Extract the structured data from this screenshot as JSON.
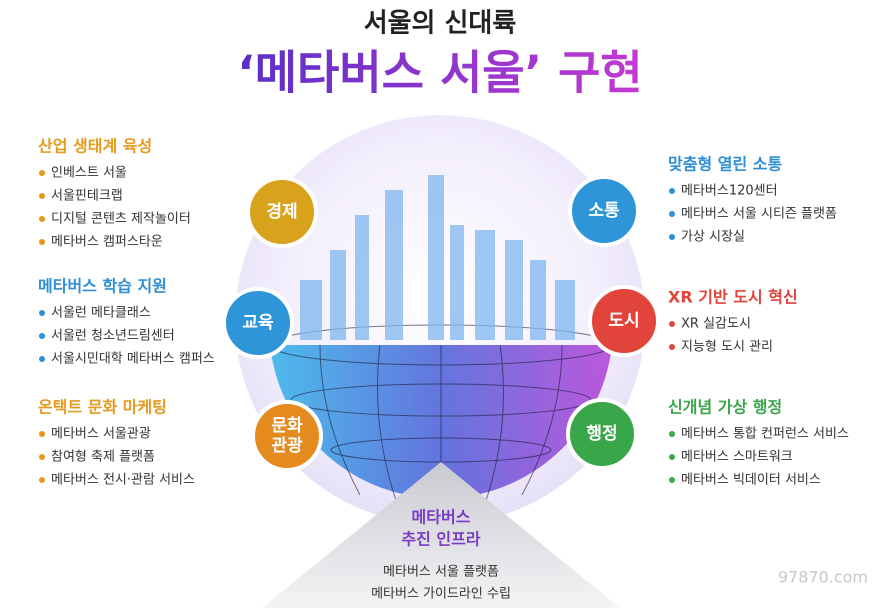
{
  "header": {
    "subtitle": "서울의 신대륙",
    "title": "‘메타버스 서울’ 구현"
  },
  "left_sections": [
    {
      "heading": "산업 생태계 육성",
      "items": [
        "인베스트 서울",
        "서울핀테크랩",
        "디지털 콘텐츠 제작놀이터",
        "메타버스 캠퍼스타운"
      ]
    },
    {
      "heading": "메타버스 학습 지원",
      "items": [
        "서울런 메타클래스",
        "서울런 청소년드림센터",
        "서울시민대학 메타버스 캠퍼스"
      ]
    },
    {
      "heading": "온택트 문화 마케팅",
      "items": [
        "메타버스 서울관광",
        "참여형 축제 플랫폼",
        "메타버스 전시·관람 서비스"
      ]
    }
  ],
  "right_sections": [
    {
      "heading": "맞춤형 열린 소통",
      "items": [
        "메타버스120센터",
        "메타버스 서울 시티즌 플랫폼",
        "가상 시장실"
      ]
    },
    {
      "heading": "XR 기반 도시 혁신",
      "items": [
        "XR 실감도시",
        "지능형 도시 관리"
      ]
    },
    {
      "heading": "신개념 가상 행정",
      "items": [
        "메타버스 통합 컨퍼런스 서비스",
        "메타버스 스마트워크",
        "메타버스 빅데이터 서비스"
      ]
    }
  ],
  "left_circles": [
    {
      "lines": [
        "경제"
      ]
    },
    {
      "lines": [
        "교육"
      ]
    },
    {
      "lines": [
        "문화",
        "관광"
      ]
    }
  ],
  "right_circles": [
    {
      "lines": [
        "소통"
      ]
    },
    {
      "lines": [
        "도시"
      ]
    },
    {
      "lines": [
        "행정"
      ]
    }
  ],
  "infra": {
    "heading": [
      "메타버스",
      "추진 인프라"
    ],
    "items": [
      "메타버스 서울 플랫폼",
      "메타버스 가이드라인 수립"
    ]
  },
  "watermark": "97870.com"
}
